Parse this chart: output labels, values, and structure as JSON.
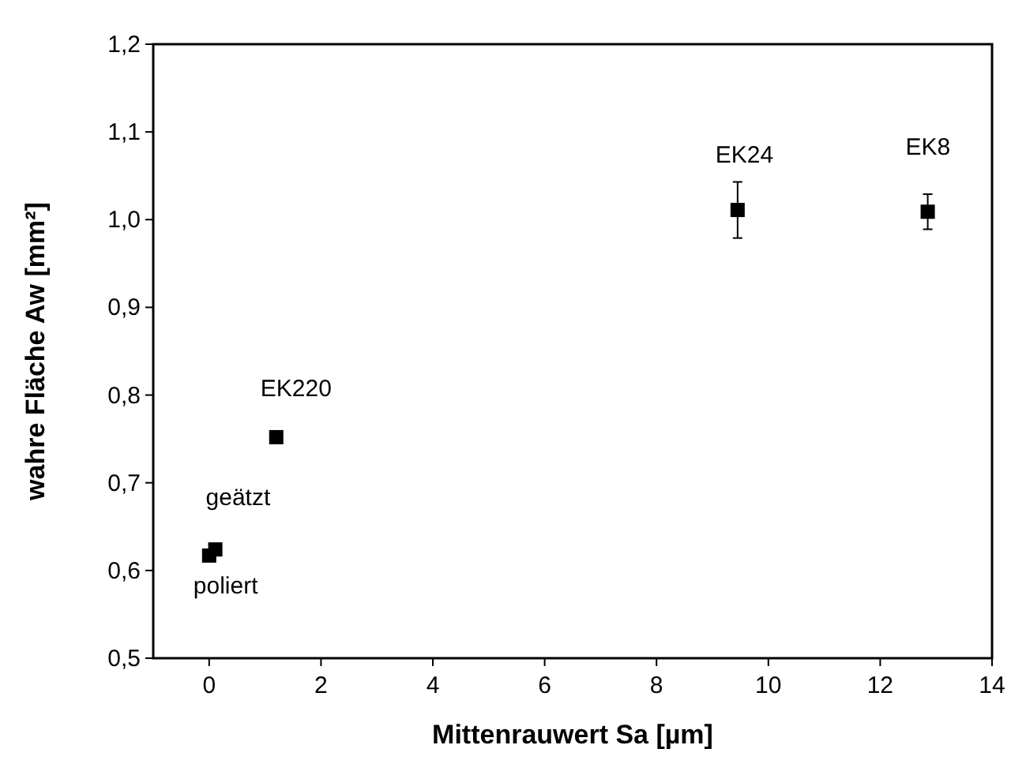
{
  "chart_data": {
    "type": "scatter",
    "xlabel": "Mittenrauwert Sa [µm]",
    "ylabel": "wahre Fläche Aw [mm²]",
    "x": [
      0.0,
      0.11,
      1.2,
      9.45,
      12.85
    ],
    "values": [
      0.617,
      0.624,
      0.752,
      1.011,
      1.009
    ],
    "errors": [
      null,
      null,
      null,
      0.032,
      0.02
    ],
    "color": "#000000",
    "marker": "square",
    "xlim": [
      -1,
      14
    ],
    "xticks": [
      0,
      2,
      4,
      6,
      8,
      10,
      12,
      14
    ],
    "ylim": [
      0.5,
      1.2
    ],
    "yticks": [
      {
        "value": 0.5,
        "label": "0,5"
      },
      {
        "value": 0.6,
        "label": "0,6"
      },
      {
        "value": 0.7,
        "label": "0,7"
      },
      {
        "value": 0.8,
        "label": "0,8"
      },
      {
        "value": 0.9,
        "label": "0,9"
      },
      {
        "value": 1.0,
        "label": "1,0"
      },
      {
        "value": 1.1,
        "label": "1,1"
      },
      {
        "value": 1.2,
        "label": "1,2"
      }
    ],
    "annotations": [
      {
        "text": "poliert",
        "x": 0.0,
        "y": 0.617
      },
      {
        "text": "geätzt",
        "x": 0.11,
        "y": 0.624
      },
      {
        "text": "EK220",
        "x": 1.2,
        "y": 0.752
      },
      {
        "text": "EK24",
        "x": 9.45,
        "y": 1.011
      },
      {
        "text": "EK8",
        "x": 12.85,
        "y": 1.009
      }
    ]
  }
}
